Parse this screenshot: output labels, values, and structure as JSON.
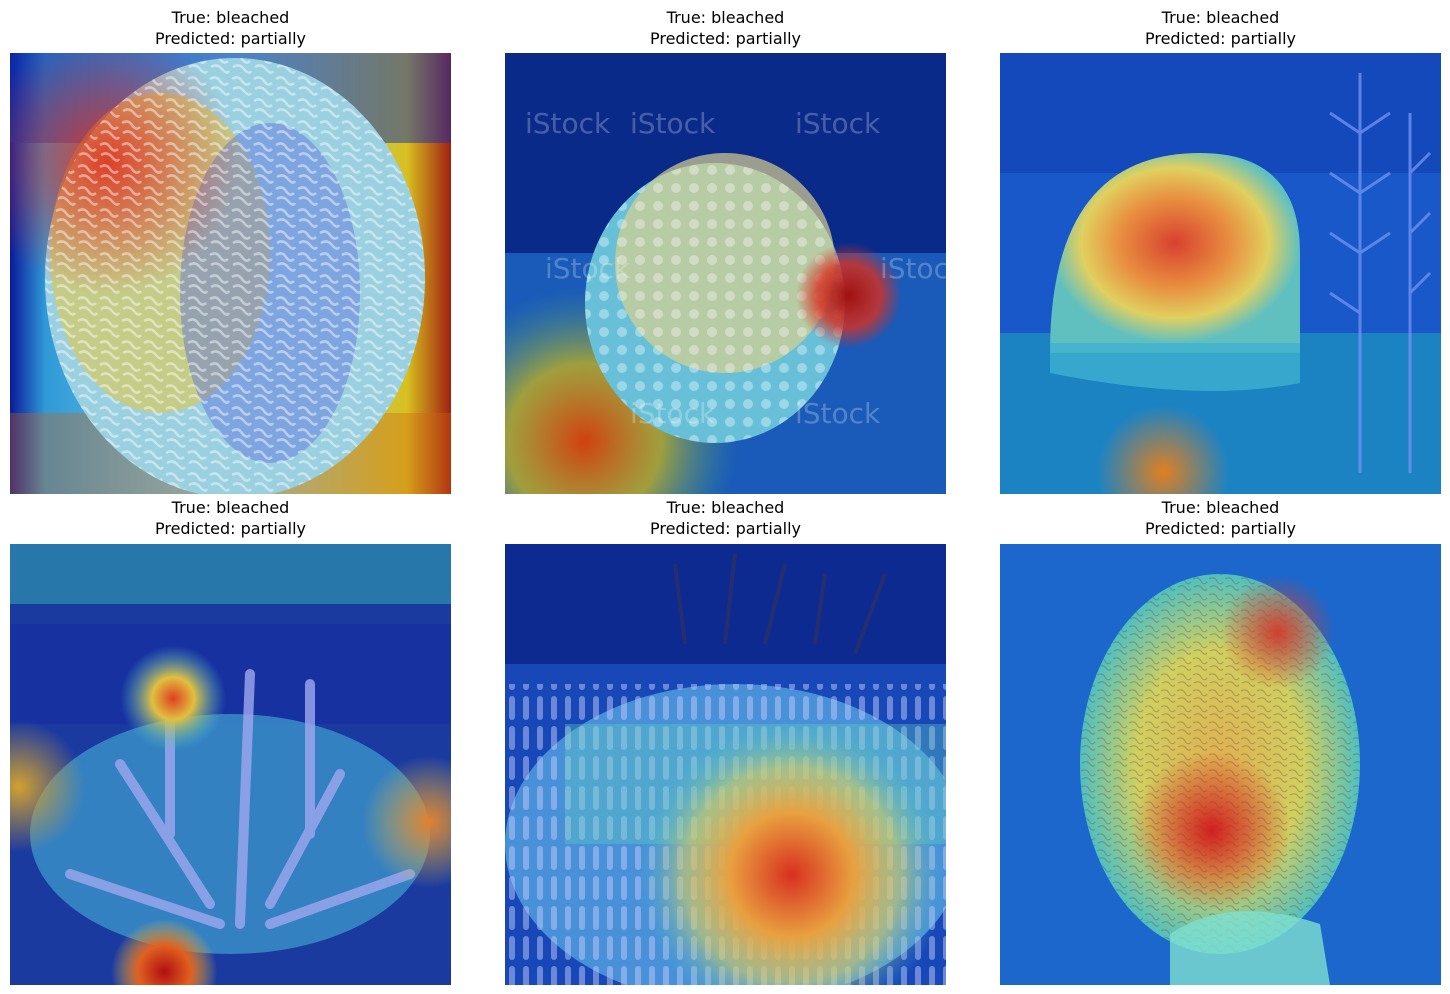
{
  "panels": [
    {
      "true_line": "True: bleached",
      "pred_line": "Predicted: partially"
    },
    {
      "true_line": "True: bleached",
      "pred_line": "Predicted: partially"
    },
    {
      "true_line": "True: bleached",
      "pred_line": "Predicted: partially"
    },
    {
      "true_line": "True: bleached",
      "pred_line": "Predicted: partially"
    },
    {
      "true_line": "True: bleached",
      "pred_line": "Predicted: partially"
    },
    {
      "true_line": "True: bleached",
      "pred_line": "Predicted: partially"
    }
  ],
  "watermark": "iStock"
}
